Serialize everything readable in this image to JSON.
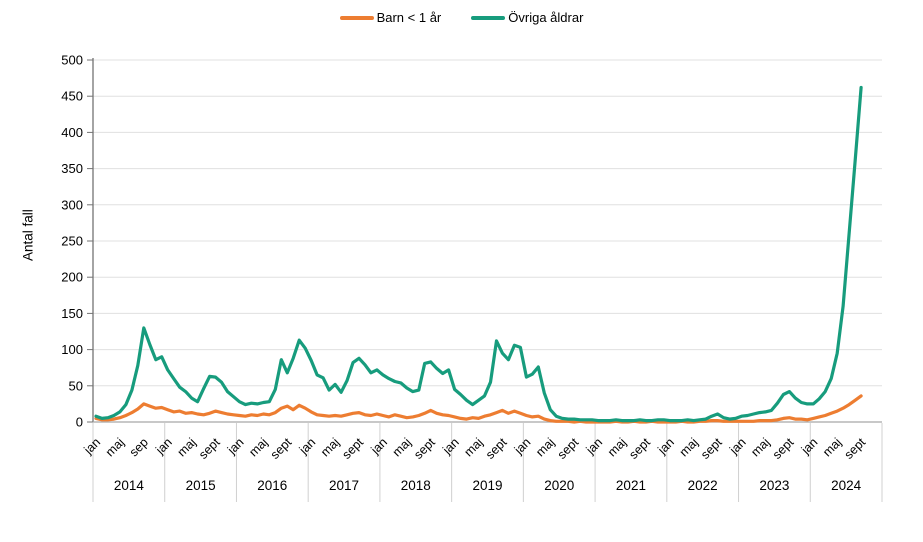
{
  "chart_data": {
    "type": "line",
    "title": "",
    "ylabel": "Antal fall",
    "ylim": [
      0,
      500
    ],
    "y_ticks": [
      0,
      50,
      100,
      150,
      200,
      250,
      300,
      350,
      400,
      450,
      500
    ],
    "grid": "horizontal",
    "legend_position": "top-center",
    "x_axis": {
      "years": [
        "2014",
        "2015",
        "2016",
        "2017",
        "2018",
        "2019",
        "2020",
        "2021",
        "2022",
        "2023",
        "2024"
      ],
      "month_tick_labels_first_year": [
        "jan",
        "maj",
        "sep"
      ],
      "month_tick_labels": [
        "jan",
        "maj",
        "sept"
      ],
      "month_tick_positions": [
        0,
        4,
        8
      ],
      "months_per_year": 12
    },
    "series": [
      {
        "name": "Barn < 1 år",
        "color": "#ED7D31",
        "values": [
          5,
          3,
          3,
          4,
          6,
          9,
          13,
          18,
          25,
          22,
          19,
          20,
          17,
          14,
          15,
          12,
          13,
          11,
          10,
          12,
          15,
          13,
          11,
          10,
          9,
          8,
          10,
          9,
          11,
          10,
          13,
          19,
          22,
          17,
          23,
          19,
          14,
          10,
          9,
          8,
          9,
          8,
          10,
          12,
          13,
          10,
          9,
          11,
          9,
          7,
          10,
          8,
          6,
          7,
          9,
          12,
          16,
          12,
          10,
          9,
          7,
          5,
          4,
          6,
          5,
          8,
          10,
          13,
          16,
          12,
          15,
          12,
          9,
          7,
          8,
          4,
          2,
          1,
          1,
          1,
          0,
          1,
          0,
          0,
          0,
          0,
          0,
          1,
          0,
          0,
          1,
          0,
          0,
          1,
          0,
          0,
          0,
          0,
          1,
          0,
          0,
          1,
          1,
          2,
          2,
          1,
          1,
          1,
          1,
          1,
          1,
          2,
          2,
          2,
          3,
          5,
          6,
          4,
          4,
          3,
          5,
          7,
          9,
          12,
          15,
          19,
          24,
          30,
          36
        ]
      },
      {
        "name": "Övriga åldrar",
        "color": "#179C7D",
        "values": [
          8,
          5,
          6,
          9,
          14,
          24,
          44,
          78,
          130,
          107,
          86,
          90,
          72,
          60,
          48,
          42,
          33,
          28,
          46,
          63,
          62,
          55,
          42,
          35,
          28,
          24,
          26,
          25,
          27,
          28,
          45,
          86,
          68,
          88,
          113,
          102,
          85,
          65,
          61,
          44,
          52,
          41,
          57,
          82,
          88,
          79,
          68,
          72,
          65,
          60,
          56,
          54,
          47,
          42,
          44,
          81,
          83,
          74,
          67,
          72,
          45,
          38,
          30,
          24,
          30,
          36,
          55,
          112,
          95,
          86,
          106,
          103,
          62,
          66,
          76,
          40,
          17,
          8,
          5,
          4,
          4,
          3,
          3,
          3,
          2,
          2,
          2,
          3,
          2,
          2,
          2,
          3,
          2,
          2,
          3,
          3,
          2,
          2,
          2,
          3,
          2,
          3,
          4,
          8,
          11,
          6,
          4,
          5,
          8,
          9,
          11,
          13,
          14,
          16,
          26,
          38,
          42,
          33,
          27,
          25,
          25,
          32,
          42,
          60,
          95,
          160,
          260,
          360,
          462
        ]
      }
    ]
  },
  "styles": {
    "gridline_color": "#E0E0E0",
    "year_separator_color": "#D0D0D0",
    "y_axis_color": "#737373",
    "x_axis_color": "#A6A6A6",
    "text_color": "#000000"
  }
}
